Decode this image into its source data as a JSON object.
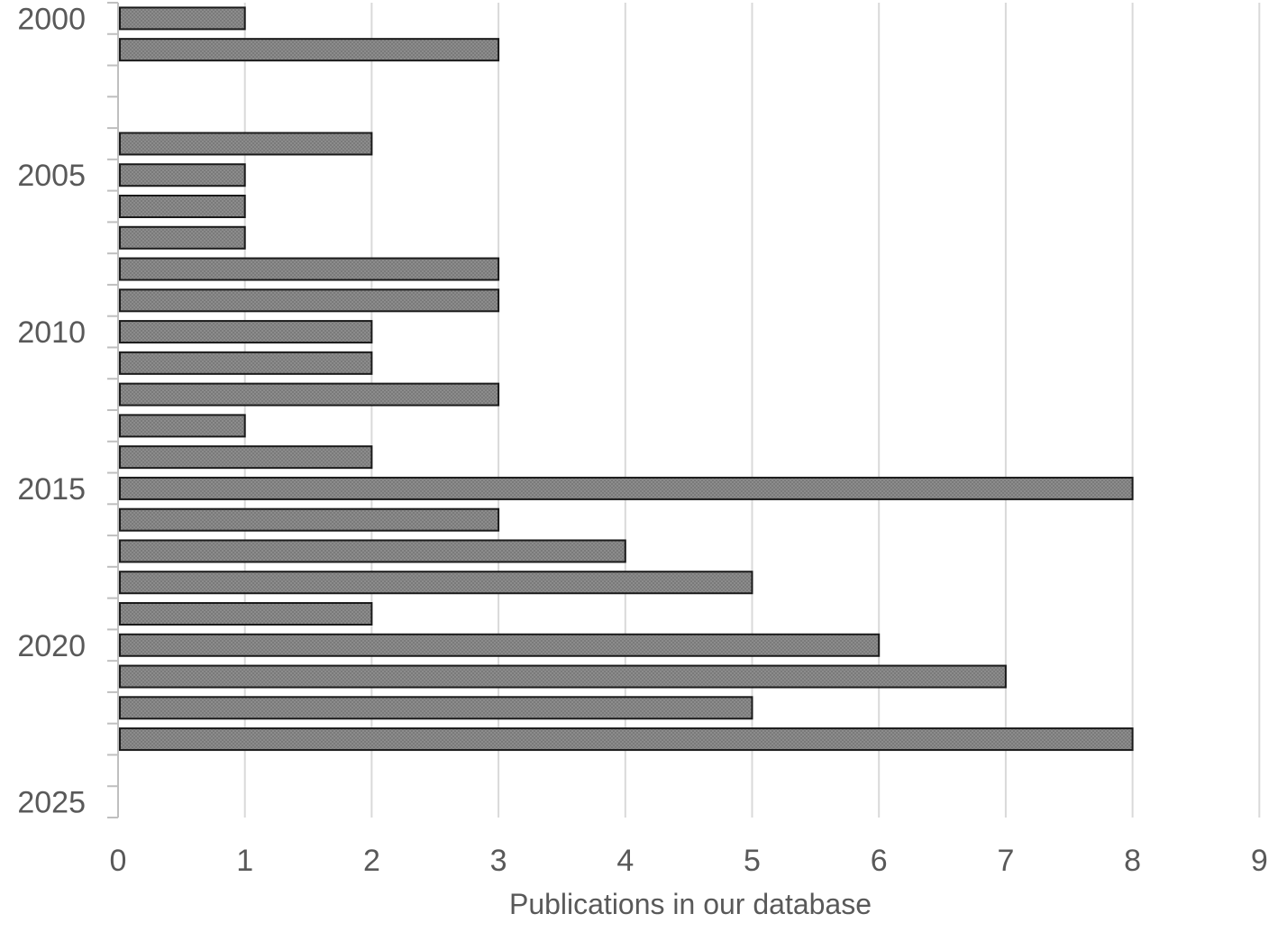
{
  "chart_data": {
    "type": "bar",
    "orientation": "horizontal",
    "title": "",
    "xlabel": "Publications in our database",
    "ylabel": "",
    "xlim": [
      0,
      9
    ],
    "ylim": [
      2000,
      2025
    ],
    "x_ticks": [
      "0",
      "1",
      "2",
      "3",
      "4",
      "5",
      "6",
      "7",
      "8",
      "9"
    ],
    "y_ticks": [
      "2000",
      "2005",
      "2010",
      "2015",
      "2020",
      "2025"
    ],
    "grid": true,
    "legend": "none",
    "bar_color": "#808080",
    "categories": [
      2000,
      2001,
      2002,
      2003,
      2004,
      2005,
      2006,
      2007,
      2008,
      2009,
      2010,
      2011,
      2012,
      2013,
      2014,
      2015,
      2016,
      2017,
      2018,
      2019,
      2020,
      2021,
      2022,
      2023,
      2024,
      2025
    ],
    "values": [
      1,
      3,
      0,
      0,
      2,
      1,
      1,
      1,
      3,
      3,
      2,
      2,
      3,
      1,
      2,
      8,
      3,
      4,
      5,
      2,
      6,
      7,
      5,
      8,
      0,
      0
    ]
  }
}
